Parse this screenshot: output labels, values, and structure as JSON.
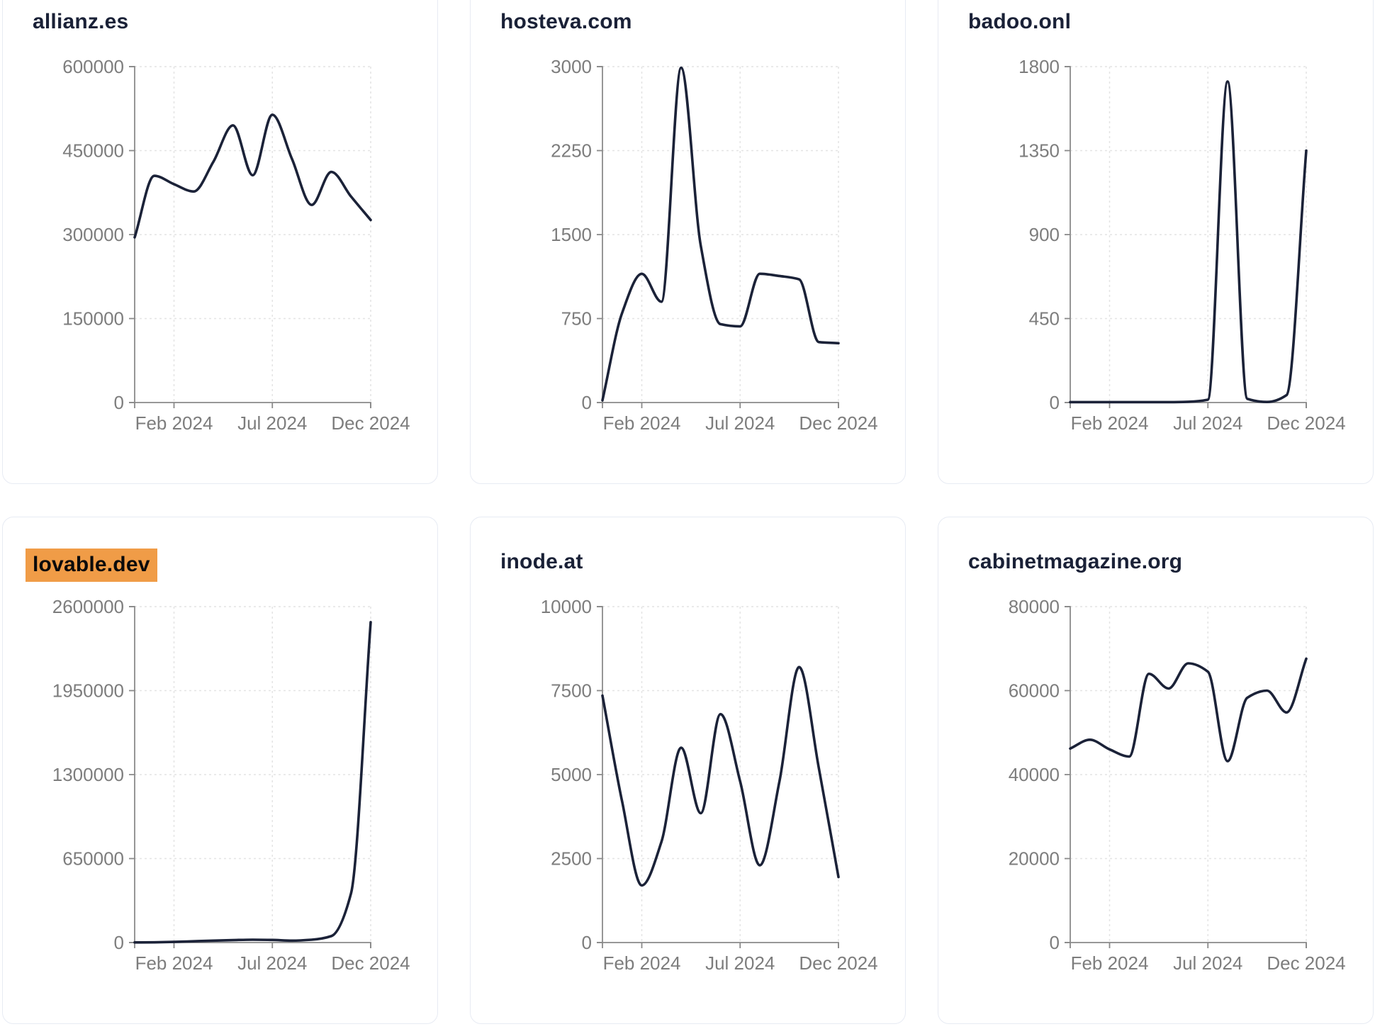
{
  "theme": {
    "background": "#ffffff",
    "card_background": "#ffffff",
    "card_border": "#e7ebf3",
    "title_color": "#1a2137",
    "highlight_background": "#f09c47",
    "highlight_text": "#0b0b0b",
    "line_color": "#1b2238",
    "axis_color": "#8a8a8a",
    "grid_color": "#e4e4e4",
    "tick_label_color": "#7d7d7d"
  },
  "chart_data": [
    {
      "type": "line",
      "title": "allianz.es",
      "highlighted": false,
      "x": [
        "Dec 2023",
        "Jan 2024",
        "Feb 2024",
        "Mar 2024",
        "Apr 2024",
        "May 2024",
        "Jun 2024",
        "Jul 2024",
        "Aug 2024",
        "Sep 2024",
        "Oct 2024",
        "Nov 2024",
        "Dec 2024"
      ],
      "values": [
        295000,
        405000,
        390000,
        377000,
        430000,
        495000,
        406000,
        514000,
        435000,
        353000,
        412000,
        368000,
        326000
      ],
      "ylim": [
        0,
        600000
      ],
      "yticks": [
        0,
        150000,
        300000,
        450000,
        600000
      ],
      "xtick_labels": [
        "Feb 2024",
        "Jul 2024",
        "Dec 2024"
      ],
      "xtick_indices": [
        2,
        7,
        12
      ],
      "grid": true,
      "legend": "none"
    },
    {
      "type": "line",
      "title": "hosteva.com",
      "highlighted": false,
      "x": [
        "Dec 2023",
        "Jan 2024",
        "Feb 2024",
        "Mar 2024",
        "Apr 2024",
        "May 2024",
        "Jun 2024",
        "Jul 2024",
        "Aug 2024",
        "Sep 2024",
        "Oct 2024",
        "Nov 2024",
        "Dec 2024"
      ],
      "values": [
        20,
        800,
        1150,
        900,
        2990,
        1400,
        700,
        680,
        1150,
        1130,
        1100,
        540,
        530
      ],
      "ylim": [
        0,
        3000
      ],
      "yticks": [
        0,
        750,
        1500,
        2250,
        3000
      ],
      "xtick_labels": [
        "Feb 2024",
        "Jul 2024",
        "Dec 2024"
      ],
      "xtick_indices": [
        2,
        7,
        12
      ],
      "grid": true,
      "legend": "none"
    },
    {
      "type": "line",
      "title": "badoo.onl",
      "highlighted": false,
      "x": [
        "Dec 2023",
        "Jan 2024",
        "Feb 2024",
        "Mar 2024",
        "Apr 2024",
        "May 2024",
        "Jun 2024",
        "Jul 2024",
        "Aug 2024",
        "Sep 2024",
        "Oct 2024",
        "Nov 2024",
        "Dec 2024"
      ],
      "values": [
        2,
        2,
        2,
        2,
        2,
        2,
        4,
        15,
        1720,
        20,
        3,
        40,
        1350
      ],
      "ylim": [
        0,
        1800
      ],
      "yticks": [
        0,
        450,
        900,
        1350,
        1800
      ],
      "xtick_labels": [
        "Feb 2024",
        "Jul 2024",
        "Dec 2024"
      ],
      "xtick_indices": [
        2,
        7,
        12
      ],
      "grid": true,
      "legend": "none"
    },
    {
      "type": "line",
      "title": "lovable.dev",
      "highlighted": true,
      "x": [
        "Dec 2023",
        "Jan 2024",
        "Feb 2024",
        "Mar 2024",
        "Apr 2024",
        "May 2024",
        "Jun 2024",
        "Jul 2024",
        "Aug 2024",
        "Sep 2024",
        "Oct 2024",
        "Nov 2024",
        "Dec 2024"
      ],
      "values": [
        1000,
        2000,
        5000,
        10000,
        15000,
        19000,
        22000,
        20000,
        15000,
        22000,
        50000,
        380000,
        2480000
      ],
      "ylim": [
        0,
        2600000
      ],
      "yticks": [
        0,
        650000,
        1300000,
        1950000,
        2600000
      ],
      "xtick_labels": [
        "Feb 2024",
        "Jul 2024",
        "Dec 2024"
      ],
      "xtick_indices": [
        2,
        7,
        12
      ],
      "grid": true,
      "legend": "none"
    },
    {
      "type": "line",
      "title": "inode.at",
      "highlighted": false,
      "x": [
        "Dec 2023",
        "Jan 2024",
        "Feb 2024",
        "Mar 2024",
        "Apr 2024",
        "May 2024",
        "Jun 2024",
        "Jul 2024",
        "Aug 2024",
        "Sep 2024",
        "Oct 2024",
        "Nov 2024",
        "Dec 2024"
      ],
      "values": [
        7350,
        4200,
        1700,
        3000,
        5800,
        3850,
        6800,
        4800,
        2300,
        4800,
        8200,
        5200,
        1950
      ],
      "ylim": [
        0,
        10000
      ],
      "yticks": [
        0,
        2500,
        5000,
        7500,
        10000
      ],
      "xtick_labels": [
        "Feb 2024",
        "Jul 2024",
        "Dec 2024"
      ],
      "xtick_indices": [
        2,
        7,
        12
      ],
      "grid": true,
      "legend": "none"
    },
    {
      "type": "line",
      "title": "cabinetmagazine.org",
      "highlighted": false,
      "x": [
        "Dec 2023",
        "Jan 2024",
        "Feb 2024",
        "Mar 2024",
        "Apr 2024",
        "May 2024",
        "Jun 2024",
        "Jul 2024",
        "Aug 2024",
        "Sep 2024",
        "Oct 2024",
        "Nov 2024",
        "Dec 2024"
      ],
      "values": [
        46200,
        48300,
        46000,
        44300,
        64000,
        60500,
        66500,
        64500,
        43200,
        58300,
        60000,
        54800,
        67600
      ],
      "ylim": [
        0,
        80000
      ],
      "yticks": [
        0,
        20000,
        40000,
        60000,
        80000
      ],
      "xtick_labels": [
        "Feb 2024",
        "Jul 2024",
        "Dec 2024"
      ],
      "xtick_indices": [
        2,
        7,
        12
      ],
      "grid": true,
      "legend": "none"
    }
  ]
}
